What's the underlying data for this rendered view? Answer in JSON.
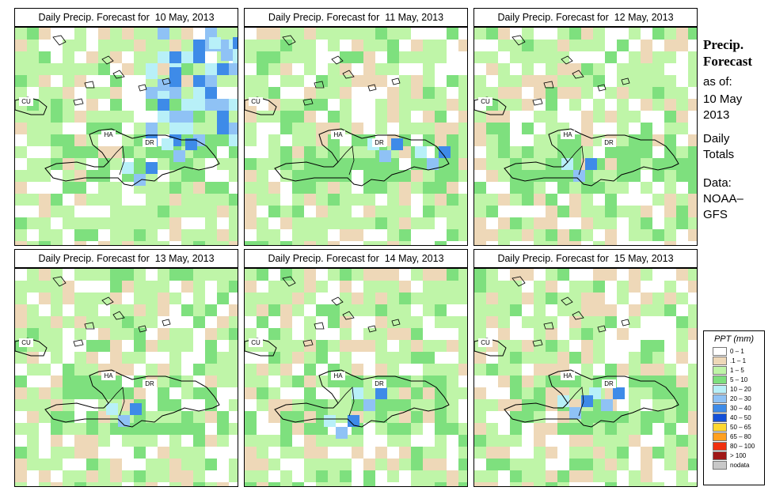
{
  "panels": [
    {
      "title": "Daily Precip. Forecast for  10 May, 2013",
      "wet": 1.0,
      "hot": [
        [
          260,
          12
        ],
        [
          290,
          30
        ],
        [
          180,
          50
        ],
        [
          200,
          140
        ],
        [
          150,
          170
        ]
      ]
    },
    {
      "title": "Daily Precip. Forecast for  11 May, 2013",
      "wet": 0.75,
      "hot": [
        [
          170,
          140
        ],
        [
          230,
          150
        ]
      ]
    },
    {
      "title": "Daily Precip. Forecast for  12 May, 2013",
      "wet": 0.7,
      "hot": [
        [
          125,
          165
        ]
      ]
    },
    {
      "title": "Daily Precip. Forecast for  13 May, 2013",
      "wet": 0.7,
      "hot": [
        [
          130,
          170
        ]
      ]
    },
    {
      "title": "Daily Precip. Forecast for  14 May, 2013",
      "wet": 0.75,
      "hot": [
        [
          150,
          150
        ],
        [
          115,
          185
        ]
      ]
    },
    {
      "title": "Daily Precip. Forecast for  15 May, 2013",
      "wet": 0.65,
      "hot": [
        [
          160,
          150
        ],
        [
          120,
          160
        ]
      ]
    }
  ],
  "map_labels": {
    "cu": "CU",
    "ha": "HA",
    "dr": "DR"
  },
  "sidebar": {
    "head1": "Precip.",
    "head2": "Forecast",
    "asof": "as of:",
    "date1": "10 May",
    "date2": "2013",
    "daily1": "Daily",
    "daily2": "Totals",
    "data1": "Data:",
    "data2": "NOAA–",
    "data3": "GFS"
  },
  "legend": {
    "title": "PPT (mm)",
    "items": [
      {
        "label": "0 – 1",
        "color": "#ffffff"
      },
      {
        "label": ".1 – 1",
        "color": "#eed8b8"
      },
      {
        "label": "1 – 5",
        "color": "#bff5a8"
      },
      {
        "label": "5 – 10",
        "color": "#7ee07e"
      },
      {
        "label": "10 – 20",
        "color": "#b8f0f8"
      },
      {
        "label": "20 – 30",
        "color": "#8fc2f5"
      },
      {
        "label": "30 – 40",
        "color": "#3e8be8"
      },
      {
        "label": "40 – 50",
        "color": "#1450d8"
      },
      {
        "label": "50 – 65",
        "color": "#ffd830"
      },
      {
        "label": "65 – 80",
        "color": "#ffa020"
      },
      {
        "label": "80 – 100",
        "color": "#f03010"
      },
      {
        "label": "> 100",
        "color": "#a01818"
      },
      {
        "label": "nodata",
        "color": "#c8c8c8"
      }
    ]
  }
}
